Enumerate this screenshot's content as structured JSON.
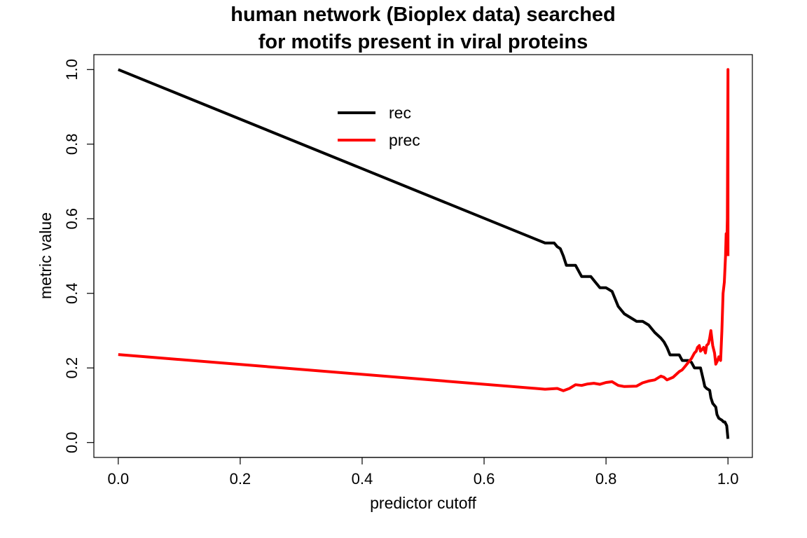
{
  "chart_data": {
    "type": "line",
    "title_line1": "human network (Bioplex data) searched",
    "title_line2": "for motifs present in viral proteins",
    "xlabel": "predictor cutoff",
    "ylabel": "metric value",
    "xlim": [
      -0.04,
      1.04
    ],
    "ylim": [
      -0.04,
      1.04
    ],
    "x_ticks": [
      0.0,
      0.2,
      0.4,
      0.6,
      0.8,
      1.0
    ],
    "x_tick_labels": [
      "0.0",
      "0.2",
      "0.4",
      "0.6",
      "0.8",
      "1.0"
    ],
    "y_ticks": [
      0.0,
      0.2,
      0.4,
      0.6,
      0.8,
      1.0
    ],
    "y_tick_labels": [
      "0.0",
      "0.2",
      "0.4",
      "0.6",
      "0.8",
      "1.0"
    ],
    "grid": false,
    "legend_position": "top-center",
    "series": [
      {
        "name": "rec",
        "color": "#000000",
        "x": [
          0.0,
          0.7,
          0.71,
          0.715,
          0.72,
          0.725,
          0.73,
          0.735,
          0.74,
          0.745,
          0.75,
          0.76,
          0.765,
          0.77,
          0.775,
          0.78,
          0.79,
          0.8,
          0.805,
          0.81,
          0.82,
          0.83,
          0.845,
          0.85,
          0.86,
          0.87,
          0.88,
          0.89,
          0.895,
          0.9,
          0.905,
          0.91,
          0.915,
          0.92,
          0.925,
          0.93,
          0.935,
          0.94,
          0.945,
          0.95,
          0.955,
          0.96,
          0.962,
          0.965,
          0.97,
          0.972,
          0.975,
          0.98,
          0.982,
          0.985,
          0.99,
          0.993,
          0.995,
          0.998,
          1.0
        ],
        "y": [
          1.0,
          0.535,
          0.535,
          0.535,
          0.525,
          0.52,
          0.5,
          0.475,
          0.475,
          0.475,
          0.475,
          0.445,
          0.445,
          0.445,
          0.445,
          0.435,
          0.415,
          0.415,
          0.41,
          0.405,
          0.365,
          0.345,
          0.33,
          0.325,
          0.325,
          0.315,
          0.295,
          0.28,
          0.27,
          0.255,
          0.235,
          0.235,
          0.235,
          0.235,
          0.22,
          0.22,
          0.22,
          0.215,
          0.2,
          0.2,
          0.2,
          0.165,
          0.15,
          0.145,
          0.14,
          0.12,
          0.105,
          0.095,
          0.075,
          0.065,
          0.06,
          0.055,
          0.055,
          0.045,
          0.01
        ]
      },
      {
        "name": "prec",
        "color": "#ff0000",
        "x": [
          0.0,
          0.7,
          0.72,
          0.73,
          0.74,
          0.75,
          0.76,
          0.77,
          0.78,
          0.79,
          0.8,
          0.81,
          0.82,
          0.83,
          0.85,
          0.86,
          0.87,
          0.88,
          0.885,
          0.89,
          0.895,
          0.9,
          0.91,
          0.92,
          0.925,
          0.93,
          0.935,
          0.94,
          0.945,
          0.948,
          0.95,
          0.953,
          0.955,
          0.958,
          0.96,
          0.963,
          0.965,
          0.968,
          0.97,
          0.972,
          0.975,
          0.978,
          0.98,
          0.983,
          0.985,
          0.988,
          0.99,
          0.992,
          0.994,
          0.996,
          0.997,
          0.998,
          0.999,
          1.0,
          1.0
        ],
        "y": [
          0.236,
          0.143,
          0.145,
          0.139,
          0.145,
          0.155,
          0.153,
          0.157,
          0.159,
          0.156,
          0.161,
          0.163,
          0.153,
          0.15,
          0.151,
          0.16,
          0.165,
          0.168,
          0.173,
          0.178,
          0.175,
          0.168,
          0.175,
          0.19,
          0.195,
          0.205,
          0.215,
          0.225,
          0.24,
          0.245,
          0.255,
          0.26,
          0.245,
          0.25,
          0.255,
          0.24,
          0.26,
          0.265,
          0.28,
          0.3,
          0.26,
          0.24,
          0.21,
          0.22,
          0.23,
          0.22,
          0.3,
          0.4,
          0.43,
          0.5,
          0.56,
          0.52,
          0.6,
          1.0,
          0.5
        ]
      }
    ]
  }
}
